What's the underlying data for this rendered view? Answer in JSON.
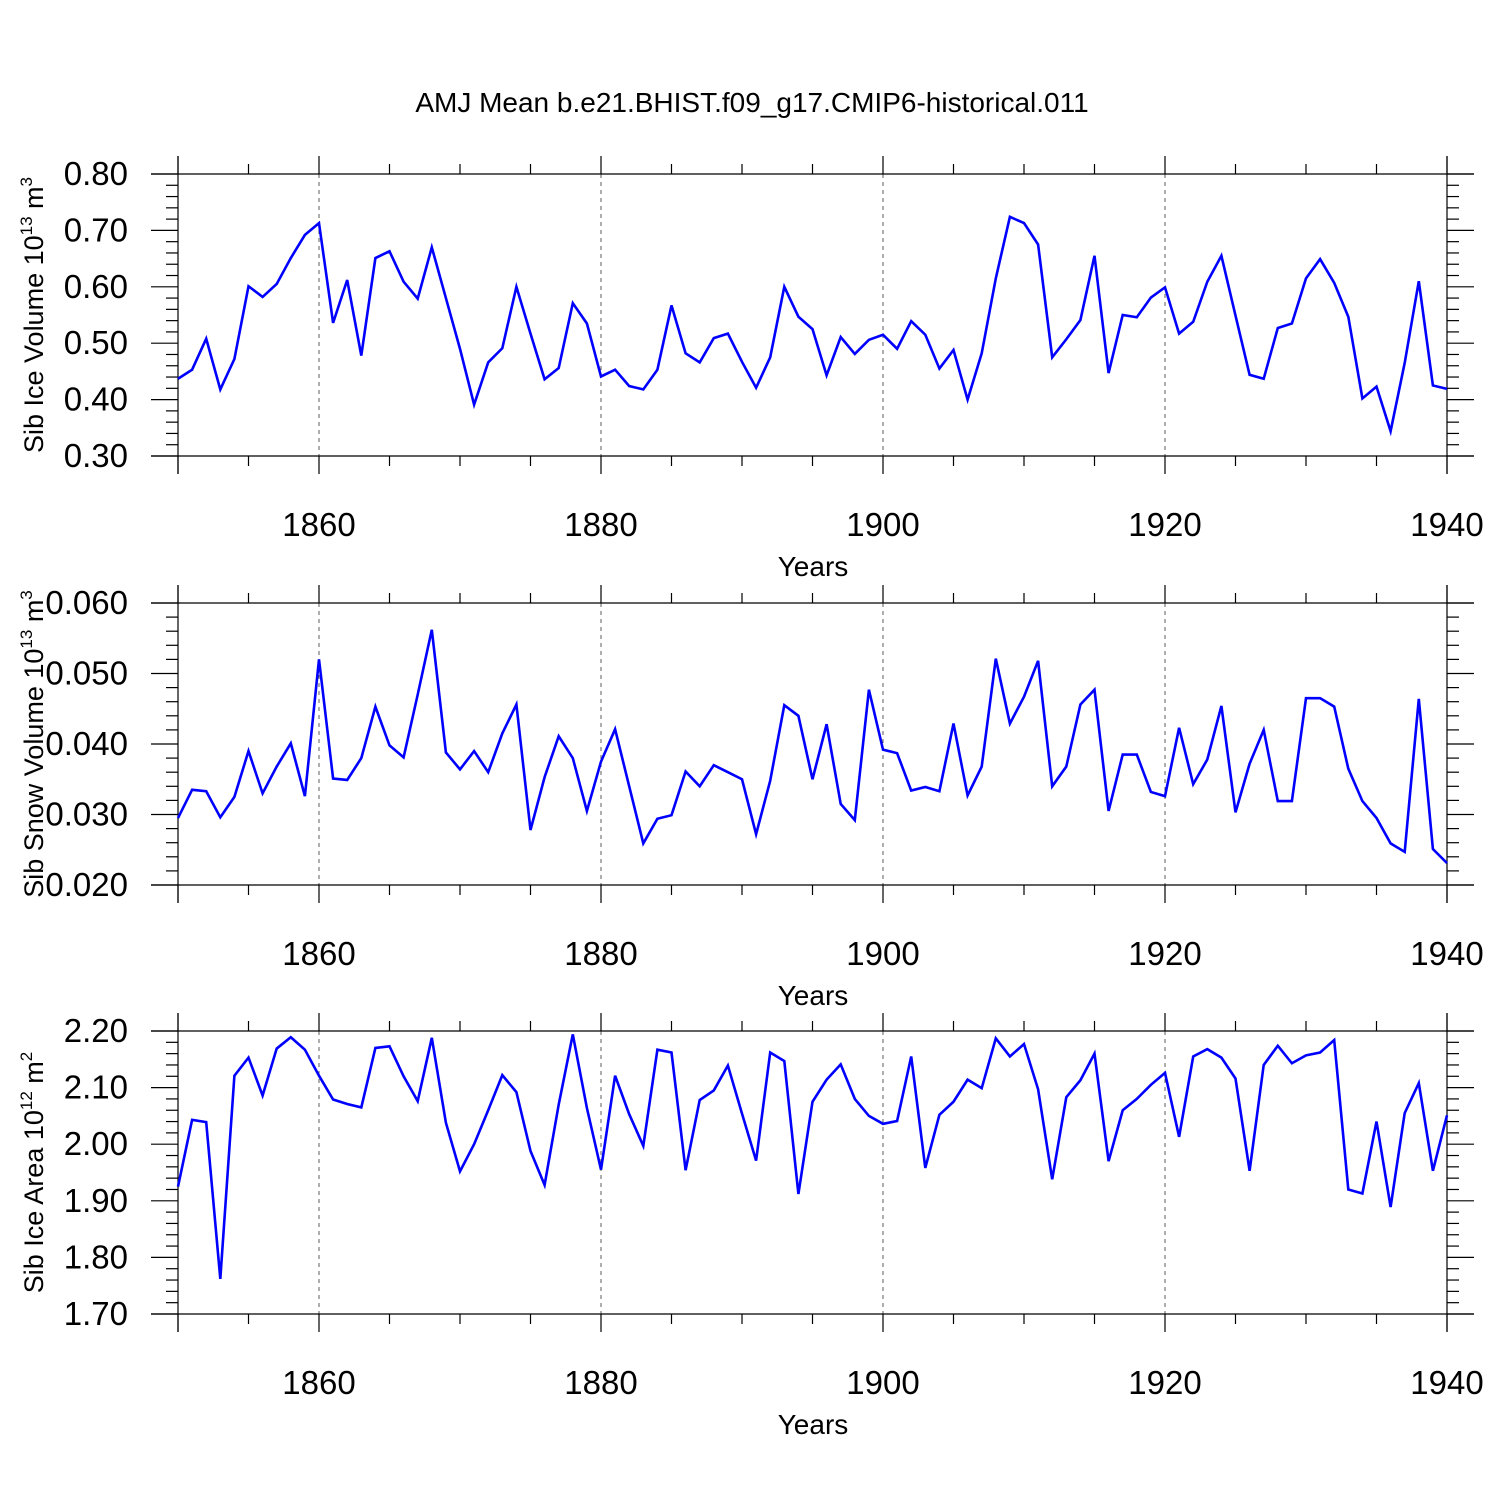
{
  "figure_title": "AMJ Mean b.e21.BHIST.f09_g17.CMIP6-historical.011",
  "colors": {
    "series": "#0000ff",
    "axis": "#000000",
    "grid": "#000000"
  },
  "chart_data": [
    {
      "type": "line",
      "ylabel_main": "Sib Ice Volume 10",
      "ylabel_exp": "13",
      "ylabel_unit": " m",
      "ylabel_unit_exp": "3",
      "xlabel": "Years",
      "xlim": [
        1850,
        1940
      ],
      "ylim": [
        0.3,
        0.8
      ],
      "x_ticks": [
        1860,
        1880,
        1900,
        1920,
        1940
      ],
      "x_tick_labels": [
        "1860",
        "1880",
        "1900",
        "1920",
        "1940"
      ],
      "y_ticks": [
        0.3,
        0.4,
        0.5,
        0.6,
        0.7,
        0.8
      ],
      "y_tick_labels": [
        "0.30",
        "0.40",
        "0.50",
        "0.60",
        "0.70",
        "0.80"
      ],
      "x_start": 1850,
      "values": [
        0.437,
        0.453,
        0.508,
        0.418,
        0.472,
        0.601,
        0.582,
        0.605,
        0.651,
        0.692,
        0.713,
        0.536,
        0.612,
        0.478,
        0.651,
        0.663,
        0.609,
        0.579,
        0.67,
        0.58,
        0.49,
        0.391,
        0.466,
        0.491,
        0.6,
        0.517,
        0.436,
        0.456,
        0.571,
        0.535,
        0.441,
        0.453,
        0.424,
        0.418,
        0.453,
        0.567,
        0.482,
        0.466,
        0.509,
        0.517,
        0.467,
        0.421,
        0.475,
        0.6,
        0.547,
        0.525,
        0.443,
        0.511,
        0.481,
        0.506,
        0.515,
        0.49,
        0.539,
        0.515,
        0.455,
        0.488,
        0.4,
        0.482,
        0.615,
        0.724,
        0.713,
        0.675,
        0.475,
        0.507,
        0.541,
        0.655,
        0.447,
        0.55,
        0.546,
        0.581,
        0.599,
        0.517,
        0.538,
        0.609,
        0.655,
        0.549,
        0.444,
        0.437,
        0.527,
        0.535,
        0.615,
        0.649,
        0.607,
        0.547,
        0.402,
        0.423,
        0.344,
        0.465,
        0.61,
        0.425,
        0.419
      ]
    },
    {
      "type": "line",
      "ylabel_main": "Sib Snow Volume 10",
      "ylabel_exp": "13",
      "ylabel_unit": " m",
      "ylabel_unit_exp": "3",
      "xlabel": "Years",
      "xlim": [
        1850,
        1940
      ],
      "ylim": [
        0.02,
        0.06
      ],
      "x_ticks": [
        1860,
        1880,
        1900,
        1920,
        1940
      ],
      "x_tick_labels": [
        "1860",
        "1880",
        "1900",
        "1920",
        "1940"
      ],
      "y_ticks": [
        0.02,
        0.03,
        0.04,
        0.05,
        0.06
      ],
      "y_tick_labels": [
        "0.020",
        "0.030",
        "0.040",
        "0.050",
        "0.060"
      ],
      "x_start": 1850,
      "values": [
        0.0295,
        0.0335,
        0.0333,
        0.0296,
        0.0325,
        0.039,
        0.033,
        0.0368,
        0.0401,
        0.0326,
        0.052,
        0.0351,
        0.0349,
        0.038,
        0.0453,
        0.0398,
        0.0381,
        0.047,
        0.0562,
        0.0388,
        0.0364,
        0.039,
        0.036,
        0.0415,
        0.0456,
        0.0278,
        0.0353,
        0.0411,
        0.038,
        0.0305,
        0.0375,
        0.0421,
        0.034,
        0.0259,
        0.0294,
        0.0299,
        0.0361,
        0.034,
        0.037,
        0.036,
        0.035,
        0.0272,
        0.0348,
        0.0455,
        0.044,
        0.035,
        0.0428,
        0.0315,
        0.0292,
        0.0477,
        0.0392,
        0.0387,
        0.0334,
        0.0339,
        0.0333,
        0.0429,
        0.0327,
        0.0368,
        0.0521,
        0.0429,
        0.0467,
        0.0518,
        0.034,
        0.0368,
        0.0456,
        0.0477,
        0.0305,
        0.0385,
        0.0385,
        0.0332,
        0.0326,
        0.0423,
        0.0343,
        0.0378,
        0.0454,
        0.0303,
        0.0372,
        0.042,
        0.0319,
        0.0319,
        0.0465,
        0.0465,
        0.0453,
        0.0365,
        0.0319,
        0.0295,
        0.0259,
        0.0247,
        0.0464,
        0.0251,
        0.0231
      ]
    },
    {
      "type": "line",
      "ylabel_main": "Sib Ice Area 10",
      "ylabel_exp": "12",
      "ylabel_unit": " m",
      "ylabel_unit_exp": "2",
      "xlabel": "Years",
      "xlim": [
        1850,
        1940
      ],
      "ylim": [
        1.7,
        2.2
      ],
      "x_ticks": [
        1860,
        1880,
        1900,
        1920,
        1940
      ],
      "x_tick_labels": [
        "1860",
        "1880",
        "1900",
        "1920",
        "1940"
      ],
      "y_ticks": [
        1.7,
        1.8,
        1.9,
        2.0,
        2.1,
        2.2
      ],
      "y_tick_labels": [
        "1.70",
        "1.80",
        "1.90",
        "2.00",
        "2.10",
        "2.20"
      ],
      "x_start": 1850,
      "values": [
        1.925,
        2.043,
        2.039,
        1.762,
        2.121,
        2.153,
        2.086,
        2.169,
        2.189,
        2.167,
        2.121,
        2.079,
        2.071,
        2.065,
        2.17,
        2.173,
        2.12,
        2.076,
        2.188,
        2.038,
        1.952,
        2.0,
        2.06,
        2.122,
        2.092,
        1.988,
        1.928,
        2.07,
        2.194,
        2.064,
        1.955,
        2.121,
        2.053,
        1.997,
        2.167,
        2.162,
        1.954,
        2.078,
        2.095,
        2.139,
        2.054,
        1.971,
        2.162,
        2.147,
        1.912,
        2.075,
        2.114,
        2.141,
        2.08,
        2.05,
        2.036,
        2.041,
        2.155,
        1.958,
        2.052,
        2.075,
        2.114,
        2.099,
        2.187,
        2.155,
        2.177,
        2.097,
        1.938,
        2.083,
        2.113,
        2.16,
        1.97,
        2.06,
        2.08,
        2.105,
        2.126,
        2.013,
        2.155,
        2.168,
        2.153,
        2.116,
        1.953,
        2.14,
        2.174,
        2.143,
        2.157,
        2.162,
        2.184,
        1.92,
        1.913,
        2.04,
        1.889,
        2.055,
        2.108,
        1.953,
        2.051
      ]
    }
  ]
}
